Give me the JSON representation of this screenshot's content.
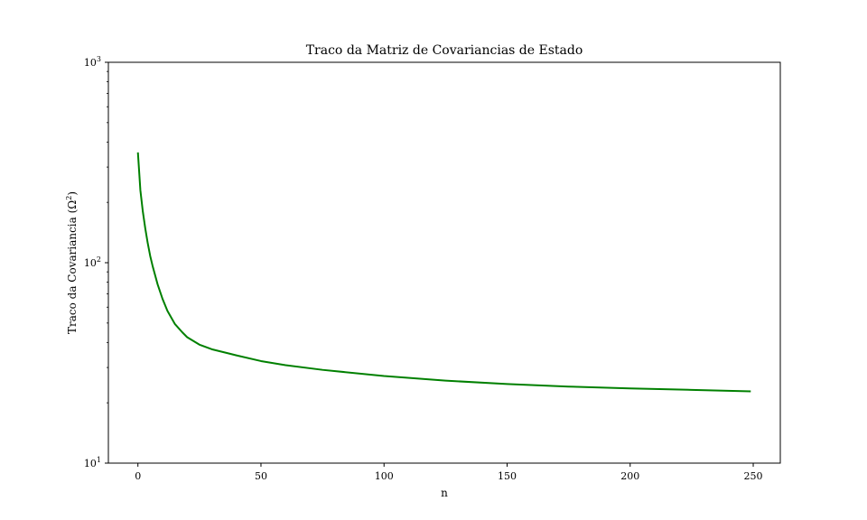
{
  "chart_data": {
    "type": "line",
    "title": "Traco da Matriz de Covariancias de Estado",
    "xlabel": "n",
    "ylabel": "Traco da Covariancia (Ω²)",
    "ylabel_base": "Traco da Covariancia (Ω",
    "ylabel_sup": "2",
    "ylabel_end": ")",
    "y_scale": "log",
    "xlim": [
      -12,
      261
    ],
    "ylim": [
      10,
      1000
    ],
    "x_ticks": [
      0,
      50,
      100,
      150,
      200,
      250
    ],
    "x_tick_labels": [
      "0",
      "50",
      "100",
      "150",
      "200",
      "250"
    ],
    "y_ticks": [
      10,
      100,
      1000
    ],
    "y_tick_labels": [
      {
        "base": "10",
        "exp": "1"
      },
      {
        "base": "10",
        "exp": "2"
      },
      {
        "base": "10",
        "exp": "3"
      }
    ],
    "grid": false,
    "legend": "none",
    "series": [
      {
        "color": "#008000",
        "x": [
          0,
          1,
          2,
          3,
          4,
          5,
          6,
          8,
          10,
          12,
          15,
          18,
          20,
          25,
          30,
          40,
          50,
          60,
          75,
          100,
          125,
          150,
          175,
          200,
          225,
          249
        ],
        "y": [
          355,
          230,
          180,
          148,
          125,
          108,
          96,
          78,
          66,
          57.5,
          49.5,
          45,
          42.5,
          39,
          37,
          34.5,
          32.3,
          30.8,
          29.2,
          27.2,
          25.8,
          24.8,
          24.1,
          23.6,
          23.2,
          22.8
        ]
      }
    ]
  }
}
